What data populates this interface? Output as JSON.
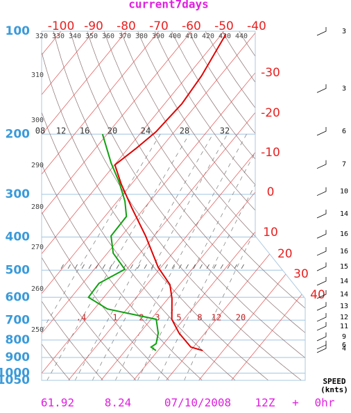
{
  "chart_data": {
    "type": "skew-t",
    "title": "current7days",
    "log_y": true,
    "ylim": [
      1050,
      100
    ],
    "yticks": [
      100,
      200,
      300,
      400,
      500,
      600,
      700,
      800,
      900,
      1000,
      1050
    ],
    "xticks": [
      -100,
      -90,
      -80,
      -70,
      -60,
      -50,
      -40,
      -30,
      -20,
      -10,
      0,
      10,
      20,
      30,
      40
    ],
    "isobar_color": "#9fc4e0",
    "isotherm_color": "#e05050",
    "temperature_profile": {
      "color": "#e00000",
      "pressure": [
        102,
        135,
        163,
        197,
        221,
        246,
        280,
        329,
        397,
        490,
        551,
        605,
        696,
        764,
        839,
        859
      ],
      "values": [
        -48.7,
        -45.7,
        -44.7,
        -45.6,
        -47.6,
        -49.9,
        -43.1,
        -33.8,
        -22.6,
        -10.9,
        -2.9,
        1.2,
        6.4,
        12.1,
        19.2,
        23.7
      ]
    },
    "dewpoint_profile": {
      "color": "#10a010",
      "pressure": [
        200,
        243,
        276,
        314,
        348,
        397,
        446,
        497,
        546,
        600,
        649,
        696,
        764,
        820,
        839,
        859
      ],
      "values": [
        -61.4,
        -51.5,
        -44.3,
        -37.7,
        -33.4,
        -33.2,
        -28.2,
        -20.6,
        -25.0,
        -24.7,
        -16.0,
        1.6,
        5.7,
        7.7,
        7.0,
        9.4
      ]
    },
    "theta_labels_top": [
      "320",
      "330",
      "340",
      "350",
      "360",
      "370",
      "380",
      "390",
      "400",
      "410",
      "420",
      "430",
      "440"
    ],
    "theta_labels_left": [
      "310",
      "300",
      "290",
      "280",
      "270",
      "260",
      "250"
    ],
    "mixing_ratio_labels_upper": [
      "08",
      "12",
      "16",
      "20",
      "24",
      "28",
      "32"
    ],
    "mixing_ratio_labels_lower": [
      ".4",
      "1",
      "2",
      "3",
      "5",
      "8",
      "12",
      "20"
    ],
    "wind": {
      "pressure": [
        100,
        147,
        196,
        245,
        294,
        342,
        392,
        440,
        488,
        538,
        588,
        637,
        686,
        729,
        782,
        827,
        847
      ],
      "speed": [
        3,
        3,
        6,
        7,
        10,
        14,
        16,
        16,
        15,
        14,
        14,
        13,
        12,
        11,
        9,
        6,
        4
      ]
    },
    "wind_axis_label": [
      "SPEED",
      "(knts)"
    ],
    "footer": [
      "61.92",
      "8.24",
      "07/10/2008",
      "12Z",
      "+",
      "0hr"
    ]
  }
}
